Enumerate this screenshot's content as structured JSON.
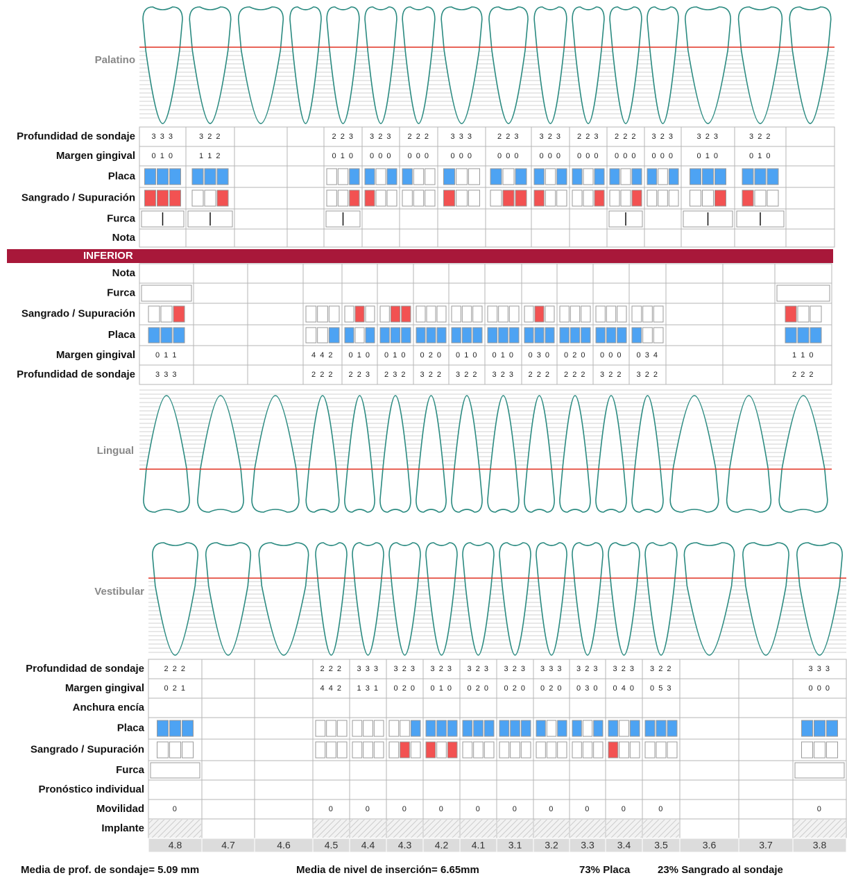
{
  "upper": {
    "label": "Palatino",
    "probing": {
      "label": "Profundidad de sondaje",
      "cells": [
        "3 3 3",
        "3 2 2",
        null,
        null,
        "2 2 3",
        "3 2 3",
        "2 2 2",
        "3 3 3",
        "2 2 3",
        "3 2 3",
        "2 2 3",
        "2 2 2",
        "3 2 3",
        "3 2 3",
        "3 2 2",
        null
      ]
    },
    "margin": {
      "label": "Margen gingival",
      "cells": [
        "0 1 0",
        "1 1 2",
        null,
        null,
        "0 1 0",
        "0 0 0",
        "0 0 0",
        "0 0 0",
        "0 0 0",
        "0 0 0",
        "0 0 0",
        "0 0 0",
        "0 0 0",
        "0 1 0",
        "0 1 0",
        null
      ]
    },
    "plaque": {
      "label": "Placa",
      "cells": [
        [
          1,
          1,
          1
        ],
        [
          1,
          1,
          1
        ],
        null,
        null,
        [
          0,
          0,
          1
        ],
        [
          1,
          0,
          1
        ],
        [
          1,
          0,
          0
        ],
        [
          1,
          0,
          0
        ],
        [
          1,
          0,
          1
        ],
        [
          1,
          0,
          1
        ],
        [
          1,
          0,
          1
        ],
        [
          1,
          0,
          1
        ],
        [
          1,
          0,
          1
        ],
        [
          1,
          1,
          1
        ],
        [
          1,
          1,
          1
        ],
        null
      ]
    },
    "bleeding": {
      "label": "Sangrado / Supuración",
      "cells": [
        [
          1,
          1,
          1
        ],
        [
          0,
          0,
          1
        ],
        null,
        null,
        [
          0,
          0,
          1
        ],
        [
          1,
          0,
          0
        ],
        [
          0,
          0,
          0
        ],
        [
          1,
          0,
          0
        ],
        [
          0,
          1,
          1
        ],
        [
          1,
          0,
          0
        ],
        [
          0,
          0,
          1
        ],
        [
          0,
          0,
          1
        ],
        [
          0,
          0,
          0
        ],
        [
          0,
          0,
          1
        ],
        [
          1,
          0,
          0
        ],
        null
      ]
    },
    "furcation": {
      "label": "Furca",
      "cells": [
        true,
        true,
        null,
        null,
        true,
        null,
        null,
        null,
        null,
        null,
        null,
        true,
        null,
        true,
        true,
        null
      ]
    },
    "note": {
      "label": "Nota"
    }
  },
  "inferior_title": "INFERIOR",
  "lower": {
    "label": "Lingual",
    "note": {
      "label": "Nota"
    },
    "furcation": {
      "label": "Furca",
      "cells": [
        true,
        null,
        null,
        null,
        null,
        null,
        null,
        null,
        null,
        null,
        null,
        null,
        null,
        null,
        null,
        true
      ]
    },
    "bleeding": {
      "label": "Sangrado / Supuración",
      "cells": [
        [
          0,
          0,
          1
        ],
        null,
        null,
        [
          0,
          0,
          0
        ],
        [
          0,
          1,
          0
        ],
        [
          0,
          1,
          1
        ],
        [
          0,
          0,
          0
        ],
        [
          0,
          0,
          0
        ],
        [
          0,
          0,
          0
        ],
        [
          0,
          1,
          0
        ],
        [
          0,
          0,
          0
        ],
        [
          0,
          0,
          0
        ],
        [
          0,
          0,
          0
        ],
        null,
        null,
        [
          1,
          0,
          0
        ]
      ]
    },
    "plaque": {
      "label": "Placa",
      "cells": [
        [
          1,
          1,
          1
        ],
        null,
        null,
        [
          0,
          0,
          1
        ],
        [
          1,
          0,
          1
        ],
        [
          1,
          1,
          1
        ],
        [
          1,
          1,
          1
        ],
        [
          1,
          1,
          1
        ],
        [
          1,
          1,
          1
        ],
        [
          1,
          1,
          1
        ],
        [
          1,
          1,
          1
        ],
        [
          1,
          1,
          1
        ],
        [
          1,
          0,
          0
        ],
        null,
        null,
        [
          1,
          1,
          1
        ]
      ]
    },
    "margin": {
      "label": "Margen gingival",
      "cells": [
        "0 1 1",
        null,
        null,
        "4 4 2",
        "0 1 0",
        "0 1 0",
        "0 2 0",
        "0 1 0",
        "0 1 0",
        "0 3 0",
        "0 2 0",
        "0 0 0",
        "0 3 4",
        null,
        null,
        "1 1 0"
      ]
    },
    "probing": {
      "label": "Profundidad de sondaje",
      "cells": [
        "3 3 3",
        null,
        null,
        "2 2 2",
        "2 2 3",
        "2 3 2",
        "3 2 2",
        "3 2 2",
        "3 2 3",
        "2 2 2",
        "2 2 2",
        "3 2 2",
        "3 2 2",
        null,
        null,
        "2 2 2"
      ]
    }
  },
  "vestibular": {
    "label": "Vestibular",
    "probing": {
      "label": "Profundidad de sondaje",
      "cells": [
        "2 2 2",
        null,
        null,
        "2 2 2",
        "3 3 3",
        "3 2 3",
        "3 2 3",
        "3 2 3",
        "3 2 3",
        "3 3 3",
        "3 2 3",
        "3 2 3",
        "3 2 2",
        null,
        null,
        "3 3 3"
      ]
    },
    "margin": {
      "label": "Margen gingival",
      "cells": [
        "0 2 1",
        null,
        null,
        "4 4 2",
        "1 3 1",
        "0 2 0",
        "0 1 0",
        "0 2 0",
        "0 2 0",
        "0 2 0",
        "0 3 0",
        "0 4 0",
        "0 5 3",
        null,
        null,
        "0 0 0"
      ]
    },
    "width": {
      "label": "Anchura encía"
    },
    "plaque": {
      "label": "Placa",
      "cells": [
        [
          1,
          1,
          1
        ],
        null,
        null,
        [
          0,
          0,
          0
        ],
        [
          0,
          0,
          0
        ],
        [
          0,
          0,
          1
        ],
        [
          1,
          1,
          1
        ],
        [
          1,
          1,
          1
        ],
        [
          1,
          1,
          1
        ],
        [
          1,
          0,
          1
        ],
        [
          1,
          0,
          1
        ],
        [
          1,
          0,
          1
        ],
        [
          1,
          1,
          1
        ],
        null,
        null,
        [
          1,
          1,
          1
        ]
      ]
    },
    "bleeding": {
      "label": "Sangrado / Supuración",
      "cells": [
        [
          0,
          0,
          0
        ],
        null,
        null,
        [
          0,
          0,
          0
        ],
        [
          0,
          0,
          0
        ],
        [
          0,
          1,
          0
        ],
        [
          1,
          0,
          1
        ],
        [
          0,
          0,
          0
        ],
        [
          0,
          0,
          0
        ],
        [
          0,
          0,
          0
        ],
        [
          0,
          0,
          0
        ],
        [
          1,
          0,
          0
        ],
        [
          0,
          0,
          0
        ],
        null,
        null,
        [
          0,
          0,
          0
        ]
      ]
    },
    "furcation": {
      "label": "Furca",
      "cells": [
        true,
        null,
        null,
        null,
        null,
        null,
        null,
        null,
        null,
        null,
        null,
        null,
        null,
        null,
        null,
        true
      ]
    },
    "prognosis": {
      "label": "Pronóstico individual"
    },
    "mobility": {
      "label": "Movilidad",
      "cells": [
        0,
        null,
        null,
        0,
        0,
        0,
        0,
        0,
        0,
        0,
        0,
        0,
        0,
        null,
        null,
        0
      ]
    },
    "implant": {
      "label": "Implante",
      "cells": [
        true,
        null,
        null,
        true,
        true,
        true,
        true,
        true,
        true,
        true,
        true,
        true,
        true,
        null,
        null,
        true
      ]
    },
    "teeth": [
      "4.8",
      "4.7",
      "4.6",
      "4.5",
      "4.4",
      "4.3",
      "4.2",
      "4.1",
      "3.1",
      "3.2",
      "3.3",
      "3.4",
      "3.5",
      "3.6",
      "3.7",
      "3.8"
    ]
  },
  "plaque_color": "#4da3f3",
  "bleeding_color": "#f25252",
  "footer": [
    "Media de prof. de sondaje= 5.09 mm",
    "Media de nivel de inserción= 6.65mm",
    "73% Placa",
    "23% Sangrado al sondaje"
  ]
}
